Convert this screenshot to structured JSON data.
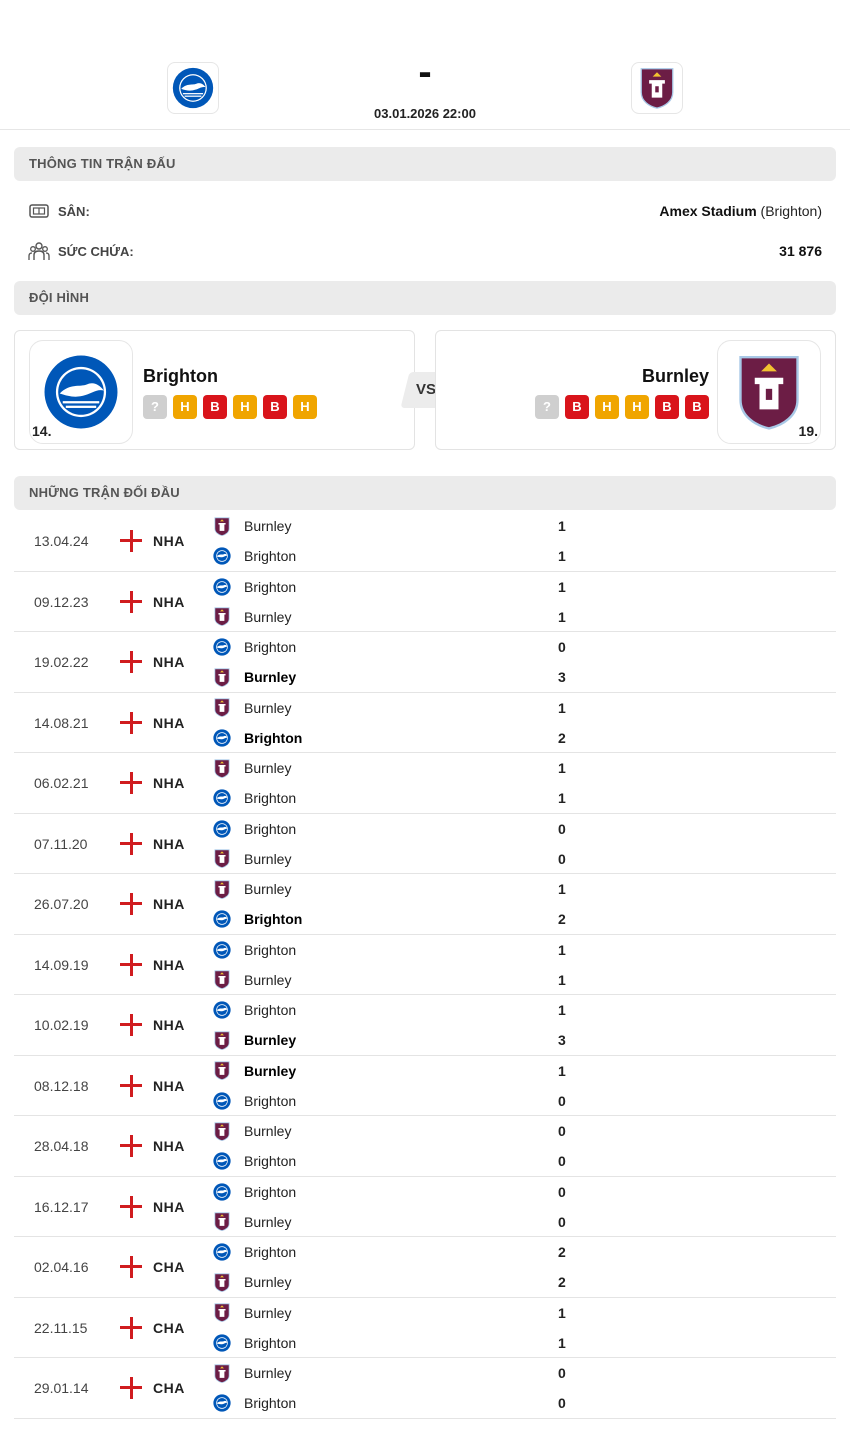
{
  "header": {
    "score_separator": "-",
    "datetime": "03.01.2026 22:00",
    "home_logo": "brighton-crest",
    "away_logo": "burnley-crest"
  },
  "match_info": {
    "section_title": "THÔNG TIN TRẬN ĐẤU",
    "venue_label": "SÂN:",
    "venue_name": "Amex Stadium",
    "venue_city": "(Brighton)",
    "capacity_label": "SỨC CHỨA:",
    "capacity_value": "31 876"
  },
  "lineup": {
    "section_title": "ĐỘI HÌNH",
    "vs_label": "VS",
    "home": {
      "name": "Brighton",
      "rank": "14.",
      "form": [
        "?",
        "H",
        "B",
        "H",
        "B",
        "H"
      ]
    },
    "away": {
      "name": "Burnley",
      "rank": "19.",
      "form": [
        "?",
        "B",
        "H",
        "H",
        "B",
        "B"
      ]
    }
  },
  "h2h": {
    "section_title": "NHỮNG TRẬN ĐỐI ĐẦU",
    "matches": [
      {
        "date": "13.04.24",
        "league": "NHA",
        "t1": "Burnley",
        "s1": "1",
        "t2": "Brighton",
        "s2": "1",
        "winner": 0
      },
      {
        "date": "09.12.23",
        "league": "NHA",
        "t1": "Brighton",
        "s1": "1",
        "t2": "Burnley",
        "s2": "1",
        "winner": 0
      },
      {
        "date": "19.02.22",
        "league": "NHA",
        "t1": "Brighton",
        "s1": "0",
        "t2": "Burnley",
        "s2": "3",
        "winner": 2
      },
      {
        "date": "14.08.21",
        "league": "NHA",
        "t1": "Burnley",
        "s1": "1",
        "t2": "Brighton",
        "s2": "2",
        "winner": 2
      },
      {
        "date": "06.02.21",
        "league": "NHA",
        "t1": "Burnley",
        "s1": "1",
        "t2": "Brighton",
        "s2": "1",
        "winner": 0
      },
      {
        "date": "07.11.20",
        "league": "NHA",
        "t1": "Brighton",
        "s1": "0",
        "t2": "Burnley",
        "s2": "0",
        "winner": 0
      },
      {
        "date": "26.07.20",
        "league": "NHA",
        "t1": "Burnley",
        "s1": "1",
        "t2": "Brighton",
        "s2": "2",
        "winner": 2
      },
      {
        "date": "14.09.19",
        "league": "NHA",
        "t1": "Brighton",
        "s1": "1",
        "t2": "Burnley",
        "s2": "1",
        "winner": 0
      },
      {
        "date": "10.02.19",
        "league": "NHA",
        "t1": "Brighton",
        "s1": "1",
        "t2": "Burnley",
        "s2": "3",
        "winner": 2
      },
      {
        "date": "08.12.18",
        "league": "NHA",
        "t1": "Burnley",
        "s1": "1",
        "t2": "Brighton",
        "s2": "0",
        "winner": 1
      },
      {
        "date": "28.04.18",
        "league": "NHA",
        "t1": "Burnley",
        "s1": "0",
        "t2": "Brighton",
        "s2": "0",
        "winner": 0
      },
      {
        "date": "16.12.17",
        "league": "NHA",
        "t1": "Brighton",
        "s1": "0",
        "t2": "Burnley",
        "s2": "0",
        "winner": 0
      },
      {
        "date": "02.04.16",
        "league": "CHA",
        "t1": "Brighton",
        "s1": "2",
        "t2": "Burnley",
        "s2": "2",
        "winner": 0
      },
      {
        "date": "22.11.15",
        "league": "CHA",
        "t1": "Burnley",
        "s1": "1",
        "t2": "Brighton",
        "s2": "1",
        "winner": 0
      },
      {
        "date": "29.01.14",
        "league": "CHA",
        "t1": "Burnley",
        "s1": "0",
        "t2": "Brighton",
        "s2": "0",
        "winner": 0
      }
    ]
  },
  "colors": {
    "brighton_blue": "#0057b8",
    "burnley_claret": "#6c1d45",
    "form_draw": "#f0a500",
    "form_loss": "#d9141b",
    "form_unknown": "#cfcfcf",
    "england_red": "#d01c1f"
  }
}
